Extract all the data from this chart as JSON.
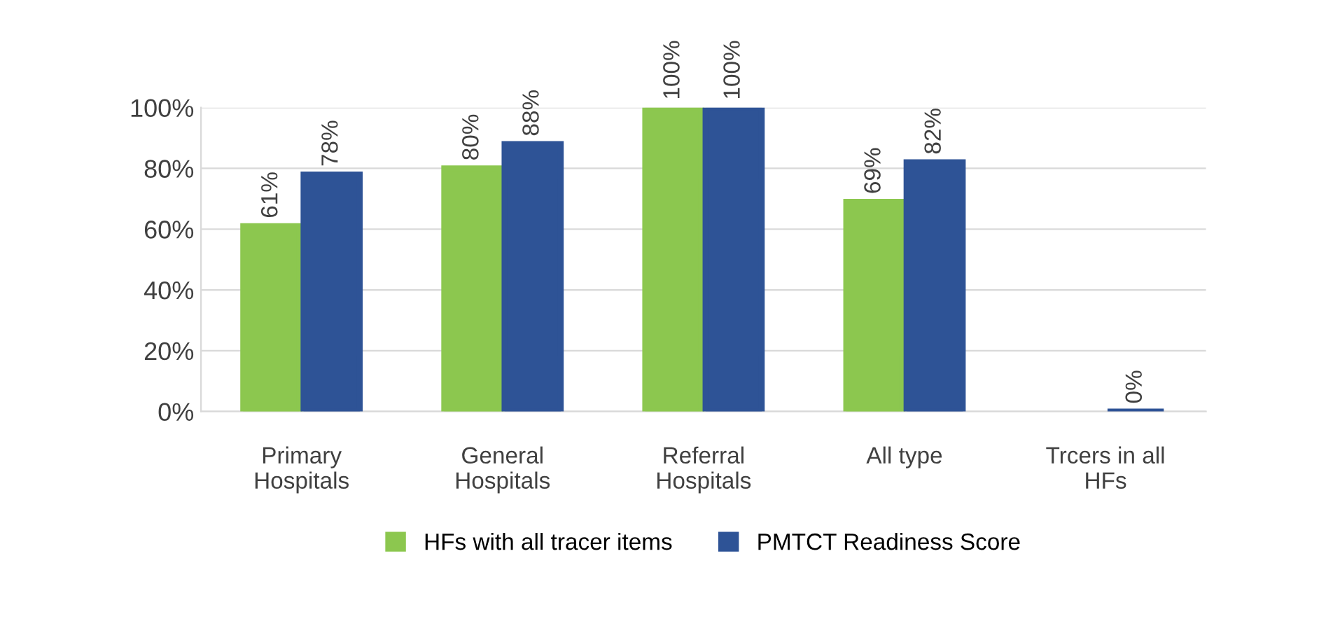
{
  "chart_data": {
    "type": "bar",
    "categories": [
      "Primary\nHospitals",
      "General\nHospitals",
      "Referral\nHospitals",
      "All type",
      "Trcers in all\nHFs"
    ],
    "series": [
      {
        "name": "HFs with all tracer items",
        "color": "#8cc74f",
        "values": [
          61,
          80,
          100,
          69,
          null
        ],
        "value_labels": [
          "61%",
          "80%",
          "100%",
          "69%",
          null
        ]
      },
      {
        "name": "PMTCT Readiness Score",
        "color": "#2e5396",
        "values": [
          78,
          88,
          100,
          82,
          0
        ],
        "value_labels": [
          "78%",
          "88%",
          "100%",
          "82%",
          "0%"
        ]
      }
    ],
    "ylim": [
      0,
      100
    ],
    "yticks": [
      {
        "value": 0,
        "label": "0%"
      },
      {
        "value": 20,
        "label": "20%"
      },
      {
        "value": 40,
        "label": "40%"
      },
      {
        "value": 60,
        "label": "60%"
      },
      {
        "value": 80,
        "label": "80%"
      },
      {
        "value": 100,
        "label": "100%"
      }
    ],
    "grid": "y",
    "legend": "bottom"
  }
}
